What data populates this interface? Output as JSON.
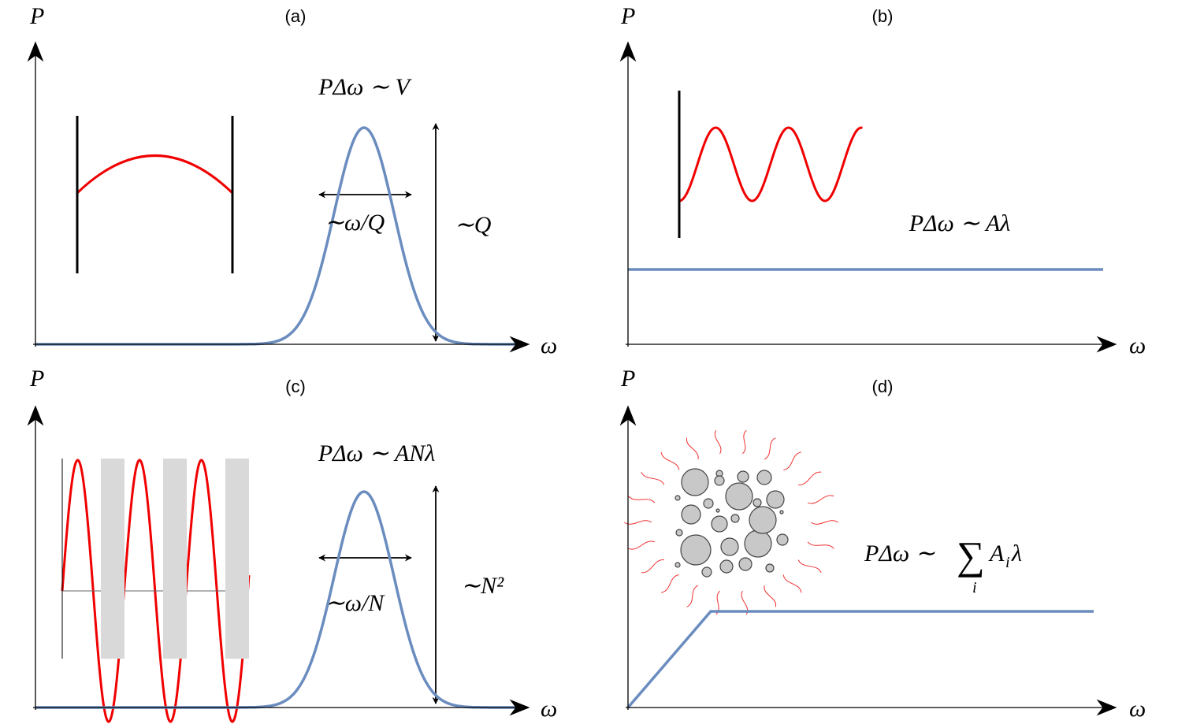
{
  "panels": [
    {
      "label": "(a)",
      "y_axis": "P",
      "x_axis": "ω",
      "formula": "PΔω ∼ V",
      "width": "∼ω/Q",
      "height": "∼Q"
    },
    {
      "label": "(b)",
      "y_axis": "P",
      "x_axis": "ω",
      "formula": "PΔω ∼ Aλ"
    },
    {
      "label": "(c)",
      "y_axis": "P",
      "x_axis": "ω",
      "formula": "PΔω ∼ ANλ",
      "width": "∼ω/N",
      "height": "∼N²"
    },
    {
      "label": "(d)",
      "y_axis": "P",
      "x_axis": "ω",
      "formula": {
        "lhs": "PΔω ∼",
        "sum": "∑",
        "index": "i",
        "term": "A",
        "term_index": "i",
        "tail": "λ"
      }
    }
  ]
}
